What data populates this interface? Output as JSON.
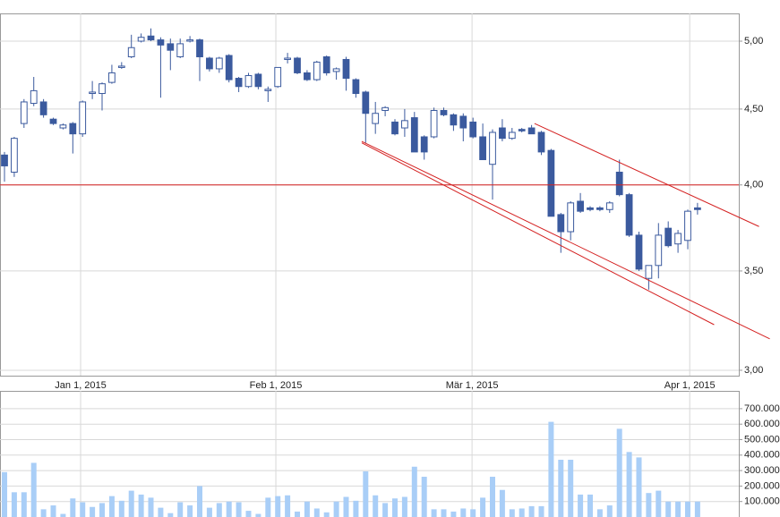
{
  "chart_data": [
    {
      "type": "candlestick",
      "log": true,
      "grid": true,
      "up_color": "#ffffff",
      "down_color": "#3b5a9e",
      "edge_color": "#3b5a9e",
      "categories": [
        null,
        null,
        null,
        null,
        null,
        null,
        null,
        null,
        null,
        null,
        null,
        null,
        null,
        null,
        null,
        null,
        null,
        null,
        null,
        null,
        null,
        null,
        null,
        null,
        null,
        null,
        null,
        null,
        null,
        null,
        null,
        null,
        null,
        null,
        null,
        null,
        null,
        null,
        null,
        null,
        null,
        null,
        null,
        null,
        null,
        null,
        null,
        null,
        null,
        null,
        null,
        null,
        null,
        null,
        null,
        null,
        null,
        null,
        null,
        null,
        null,
        null,
        null,
        null,
        null,
        null,
        null,
        null,
        null,
        null,
        null,
        null
      ],
      "open": [
        4.19,
        4.08,
        4.4,
        4.54,
        4.55,
        4.43,
        4.37,
        4.4,
        4.33,
        4.61,
        4.61,
        4.69,
        4.8,
        4.88,
        5.0,
        5.04,
        5.01,
        4.98,
        4.88,
        5.0,
        5.01,
        4.87,
        4.79,
        4.89,
        4.72,
        4.66,
        4.75,
        4.63,
        4.66,
        4.86,
        4.87,
        4.76,
        4.71,
        4.88,
        4.77,
        4.86,
        4.71,
        4.62,
        4.4,
        4.49,
        4.41,
        4.37,
        4.44,
        4.31,
        4.31,
        4.49,
        4.46,
        4.45,
        4.41,
        4.31,
        4.13,
        4.37,
        4.3,
        4.36,
        4.37,
        4.34,
        4.22,
        3.82,
        3.72,
        3.9,
        3.86,
        3.86,
        3.85,
        4.08,
        3.94,
        3.7,
        3.46,
        3.53,
        3.74,
        3.65,
        3.67,
        3.86
      ],
      "high": [
        4.21,
        4.31,
        4.57,
        4.73,
        4.57,
        4.44,
        4.4,
        4.41,
        4.56,
        4.7,
        4.69,
        4.82,
        4.84,
        5.05,
        5.06,
        5.1,
        5.03,
        5.02,
        5.02,
        5.04,
        5.02,
        4.88,
        4.88,
        4.9,
        4.73,
        4.76,
        4.76,
        4.66,
        4.8,
        4.91,
        4.88,
        4.78,
        4.85,
        4.89,
        4.8,
        4.88,
        4.72,
        4.63,
        4.55,
        4.52,
        4.43,
        4.5,
        4.48,
        4.32,
        4.51,
        4.51,
        4.47,
        4.47,
        4.44,
        4.4,
        4.36,
        4.43,
        4.37,
        4.37,
        4.39,
        4.35,
        4.23,
        3.83,
        3.9,
        3.95,
        3.87,
        3.87,
        3.9,
        4.16,
        3.95,
        3.72,
        3.53,
        3.77,
        3.78,
        3.73,
        3.85,
        3.89
      ],
      "low": [
        4.02,
        4.05,
        4.37,
        4.52,
        4.44,
        4.39,
        4.36,
        4.2,
        4.31,
        4.57,
        4.49,
        4.68,
        4.79,
        4.87,
        4.99,
        5.0,
        4.58,
        4.78,
        4.87,
        4.99,
        4.7,
        4.77,
        4.76,
        4.69,
        4.62,
        4.65,
        4.64,
        4.55,
        4.65,
        4.83,
        4.75,
        4.7,
        4.7,
        4.74,
        4.71,
        4.63,
        4.58,
        4.27,
        4.33,
        4.45,
        4.32,
        4.31,
        4.21,
        4.16,
        4.3,
        4.45,
        4.35,
        4.28,
        4.3,
        4.16,
        3.91,
        4.28,
        4.29,
        4.34,
        4.33,
        4.19,
        3.81,
        3.6,
        3.67,
        3.83,
        3.84,
        3.84,
        3.83,
        3.93,
        3.69,
        3.5,
        3.4,
        3.46,
        3.63,
        3.6,
        3.62,
        3.82
      ],
      "close": [
        4.12,
        4.3,
        4.55,
        4.63,
        4.46,
        4.4,
        4.39,
        4.33,
        4.55,
        4.62,
        4.68,
        4.76,
        4.81,
        4.95,
        5.03,
        5.01,
        4.97,
        4.93,
        4.98,
        5.01,
        4.88,
        4.79,
        4.87,
        4.71,
        4.66,
        4.74,
        4.66,
        4.64,
        4.8,
        4.87,
        4.76,
        4.71,
        4.84,
        4.76,
        4.79,
        4.72,
        4.61,
        4.47,
        4.47,
        4.51,
        4.33,
        4.42,
        4.21,
        4.21,
        4.49,
        4.46,
        4.39,
        4.37,
        4.31,
        4.16,
        4.34,
        4.3,
        4.34,
        4.35,
        4.33,
        4.21,
        3.81,
        3.72,
        3.89,
        3.84,
        3.85,
        3.85,
        3.89,
        3.94,
        3.7,
        3.51,
        3.53,
        3.7,
        3.64,
        3.71,
        3.84,
        3.85
      ],
      "xlim": [
        -0.46,
        75.23
      ],
      "xticks": [
        {
          "value": 7.8,
          "label": "Jan 1, 2015"
        },
        {
          "value": 27.8,
          "label": "Feb 1, 2015"
        },
        {
          "value": 47.9,
          "label": "Mär 1, 2015"
        },
        {
          "value": 70.2,
          "label": "Apr 1, 2015"
        }
      ],
      "ylim": [
        2.975,
        5.22
      ],
      "yticks": [
        {
          "value": 3,
          "label": "3,00"
        },
        {
          "value": 3.5,
          "label": "3,50"
        },
        {
          "value": 4,
          "label": "4,00"
        },
        {
          "value": 4.5,
          "label": "4,50"
        },
        {
          "value": 5,
          "label": "5,00"
        }
      ],
      "line_color": "#d42020",
      "hline": 4.0,
      "trendlines": [
        {
          "from": [
            54.3,
            4.4
          ],
          "to": [
            77.3,
            3.75
          ]
        },
        {
          "from": [
            36.6,
            4.28
          ],
          "to": [
            78.4,
            3.15
          ]
        },
        {
          "from": [
            36.6,
            4.27
          ],
          "to": [
            72.7,
            3.22
          ]
        }
      ]
    },
    {
      "type": "bar",
      "color": "#a9cef7",
      "grid": true,
      "values": [
        290000,
        160000,
        160000,
        350000,
        50000,
        75000,
        20000,
        120000,
        95000,
        65000,
        90000,
        135000,
        105000,
        170000,
        145000,
        125000,
        60000,
        25000,
        95000,
        75000,
        200000,
        60000,
        90000,
        100000,
        95000,
        40000,
        20000,
        125000,
        135000,
        140000,
        35000,
        100000,
        55000,
        30000,
        100000,
        130000,
        105000,
        295000,
        140000,
        90000,
        120000,
        130000,
        325000,
        260000,
        50000,
        50000,
        35000,
        55000,
        50000,
        125000,
        260000,
        175000,
        50000,
        55000,
        70000,
        70000,
        615000,
        370000,
        370000,
        145000,
        145000,
        50000,
        75000,
        570000,
        420000,
        385000,
        155000,
        170000,
        100000,
        100000,
        100000,
        100000
      ],
      "xlim": [
        -0.46,
        75.23
      ],
      "ylim": [
        0,
        815000
      ],
      "yticks": [
        {
          "value": 100000,
          "label": "100.000"
        },
        {
          "value": 200000,
          "label": "200.000"
        },
        {
          "value": 300000,
          "label": "300.000"
        },
        {
          "value": 400000,
          "label": "400.000"
        },
        {
          "value": 500000,
          "label": "500.000"
        },
        {
          "value": 600000,
          "label": "600.000"
        },
        {
          "value": 700000,
          "label": "700.000"
        }
      ]
    }
  ]
}
